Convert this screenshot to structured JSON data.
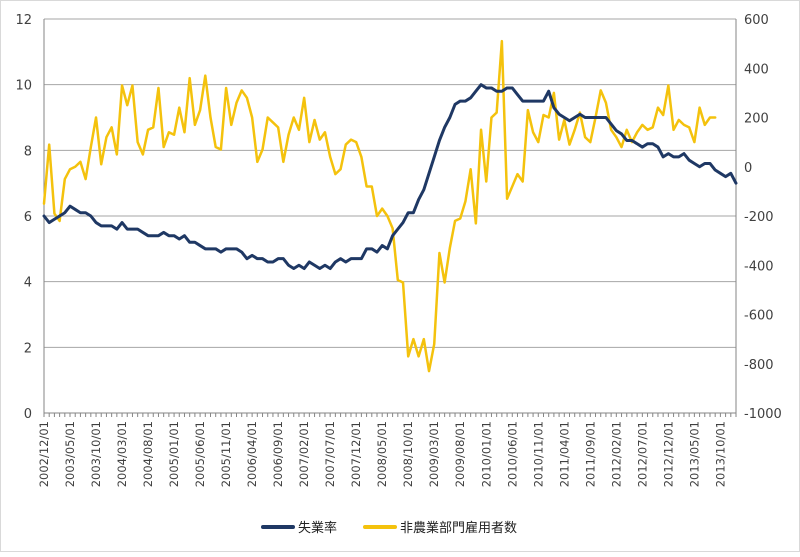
{
  "chart_data": {
    "type": "line",
    "title": "",
    "xlabel": "",
    "ylabel": "",
    "y2label": "",
    "legend_position": "bottom",
    "grid": "horizontal",
    "x_tick_labels": [
      "2002/12/01",
      "2003/05/01",
      "2003/10/01",
      "2004/03/01",
      "2004/08/01",
      "2005/01/01",
      "2005/06/01",
      "2005/11/01",
      "2006/04/01",
      "2006/09/01",
      "2007/02/01",
      "2007/07/01",
      "2007/12/01",
      "2008/05/01",
      "2008/10/01",
      "2009/03/01",
      "2009/08/01",
      "2010/01/01",
      "2010/06/01",
      "2010/11/01",
      "2011/04/01",
      "2011/09/01",
      "2012/02/01",
      "2012/07/01",
      "2012/12/01",
      "2013/05/01",
      "2013/10/01"
    ],
    "y_left": {
      "range": [
        0,
        12
      ],
      "ticks": [
        "0",
        "2",
        "4",
        "6",
        "8",
        "10",
        "12"
      ]
    },
    "y_right": {
      "range": [
        -1000,
        600
      ],
      "ticks": [
        "-1000",
        "-800",
        "-600",
        "-400",
        "-200",
        "0",
        "200",
        "400",
        "600"
      ]
    },
    "x_start": "2002/12/01",
    "series": [
      {
        "name": "失業率",
        "axis": "left",
        "color": "#1f3864",
        "values": [
          6.0,
          5.8,
          5.9,
          6.0,
          6.1,
          6.3,
          6.2,
          6.1,
          6.1,
          6.0,
          5.8,
          5.7,
          5.7,
          5.7,
          5.6,
          5.8,
          5.6,
          5.6,
          5.6,
          5.5,
          5.4,
          5.4,
          5.4,
          5.5,
          5.4,
          5.4,
          5.3,
          5.4,
          5.2,
          5.2,
          5.1,
          5.0,
          5.0,
          5.0,
          4.9,
          5.0,
          5.0,
          5.0,
          4.9,
          4.7,
          4.8,
          4.7,
          4.7,
          4.6,
          4.6,
          4.7,
          4.7,
          4.5,
          4.4,
          4.5,
          4.4,
          4.6,
          4.5,
          4.4,
          4.5,
          4.4,
          4.6,
          4.7,
          4.6,
          4.7,
          4.7,
          4.7,
          5.0,
          5.0,
          4.9,
          5.1,
          5.0,
          5.4,
          5.6,
          5.8,
          6.1,
          6.1,
          6.5,
          6.8,
          7.3,
          7.8,
          8.3,
          8.7,
          9.0,
          9.4,
          9.5,
          9.5,
          9.6,
          9.8,
          10.0,
          9.9,
          9.9,
          9.8,
          9.8,
          9.9,
          9.9,
          9.7,
          9.5,
          9.5,
          9.5,
          9.5,
          9.5,
          9.8,
          9.3,
          9.1,
          9.0,
          8.9,
          9.0,
          9.1,
          9.0,
          9.0,
          9.0,
          9.0,
          9.0,
          8.8,
          8.6,
          8.5,
          8.3,
          8.3,
          8.2,
          8.1,
          8.2,
          8.2,
          8.1,
          7.8,
          7.9,
          7.8,
          7.8,
          7.9,
          7.7,
          7.6,
          7.5,
          7.6,
          7.6,
          7.4,
          7.3,
          7.2,
          7.3,
          7.0
        ]
      },
      {
        "name": "非農業部門雇用者数",
        "axis": "right",
        "color": "#f4c20d",
        "values": [
          -150,
          90,
          -190,
          -220,
          -50,
          -10,
          0,
          20,
          -50,
          80,
          200,
          10,
          120,
          160,
          50,
          330,
          250,
          330,
          100,
          50,
          150,
          160,
          320,
          80,
          140,
          130,
          240,
          140,
          360,
          170,
          230,
          370,
          200,
          80,
          70,
          320,
          170,
          260,
          310,
          280,
          200,
          20,
          70,
          200,
          180,
          160,
          20,
          130,
          200,
          150,
          280,
          100,
          190,
          110,
          140,
          40,
          -30,
          -10,
          90,
          110,
          100,
          40,
          -80,
          -80,
          -200,
          -170,
          -200,
          -250,
          -460,
          -470,
          -770,
          -700,
          -770,
          -700,
          -830,
          -720,
          -350,
          -470,
          -330,
          -220,
          -210,
          -140,
          -10,
          -230,
          150,
          -60,
          200,
          220,
          510,
          -130,
          -80,
          -30,
          -60,
          230,
          140,
          100,
          210,
          200,
          300,
          110,
          190,
          90,
          150,
          220,
          120,
          100,
          200,
          310,
          260,
          150,
          120,
          80,
          150,
          100,
          140,
          170,
          150,
          160,
          240,
          210,
          330,
          150,
          190,
          170,
          160,
          100,
          240,
          170,
          200,
          200
        ]
      }
    ]
  },
  "legend": {
    "items": [
      {
        "label": "失業率",
        "color": "#1f3864"
      },
      {
        "label": "非農業部門雇用者数",
        "color": "#f4c20d"
      }
    ]
  }
}
